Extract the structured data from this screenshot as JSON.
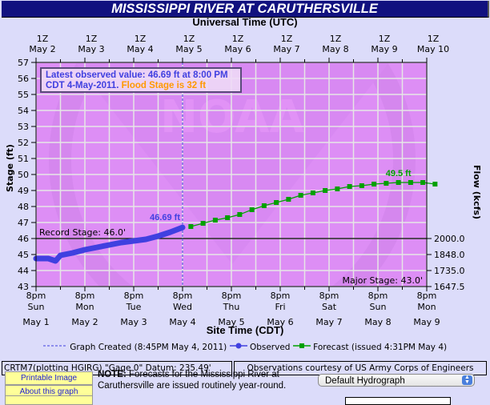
{
  "header": {
    "title": "MISSISSIPPI RIVER AT CARUTHERSVILLE"
  },
  "chart_data": {
    "type": "line",
    "title": "MISSISSIPPI RIVER AT CARUTHERSVILLE",
    "top_axis_title": "Universal Time (UTC)",
    "top_ticks": [
      {
        "line1": "1Z",
        "line2": "May  2"
      },
      {
        "line1": "1Z",
        "line2": "May  3"
      },
      {
        "line1": "1Z",
        "line2": "May  4"
      },
      {
        "line1": "1Z",
        "line2": "May  5"
      },
      {
        "line1": "1Z",
        "line2": "May  6"
      },
      {
        "line1": "1Z",
        "line2": "May  7"
      },
      {
        "line1": "1Z",
        "line2": "May  8"
      },
      {
        "line1": "1Z",
        "line2": "May  9"
      },
      {
        "line1": "1Z",
        "line2": "May 10"
      }
    ],
    "xlabel": "Site Time (CDT)",
    "x_ticks": [
      {
        "time": "8pm",
        "day": "Sun",
        "date": "May 1"
      },
      {
        "time": "8pm",
        "day": "Mon",
        "date": "May 2"
      },
      {
        "time": "8pm",
        "day": "Tue",
        "date": "May 3"
      },
      {
        "time": "8pm",
        "day": "Wed",
        "date": "May 4"
      },
      {
        "time": "8pm",
        "day": "Thu",
        "date": "May 5"
      },
      {
        "time": "8pm",
        "day": "Fri",
        "date": "May 6"
      },
      {
        "time": "8pm",
        "day": "Sat",
        "date": "May 7"
      },
      {
        "time": "8pm",
        "day": "Sun",
        "date": "May 8"
      },
      {
        "time": "8pm",
        "day": "Mon",
        "date": "May 9"
      }
    ],
    "ylabel": "Stage (ft)",
    "ylim": [
      43,
      57
    ],
    "y_ticks": [
      43,
      44,
      45,
      46,
      47,
      48,
      49,
      50,
      51,
      52,
      53,
      54,
      55,
      56,
      57
    ],
    "y2label": "Flow (kcfs)",
    "y2_ticks": [
      {
        "stage": 46,
        "label": "2000.0"
      },
      {
        "stage": 45,
        "label": "1848.0"
      },
      {
        "stage": 44,
        "label": "1735.0"
      },
      {
        "stage": 43,
        "label": "1647.5"
      }
    ],
    "grid": true,
    "series": [
      {
        "name": "Observed",
        "color": "#4040e0",
        "x_days_from_may1_8pm": [
          0,
          0.25,
          0.4,
          0.5,
          0.75,
          1.0,
          1.25,
          1.5,
          1.75,
          2.0,
          2.25,
          2.5,
          2.75,
          3.0
        ],
        "values": [
          44.75,
          44.75,
          44.6,
          44.95,
          45.1,
          45.3,
          45.45,
          45.6,
          45.75,
          45.85,
          45.95,
          46.15,
          46.4,
          46.69
        ]
      },
      {
        "name": "Forecast (issued 4:31PM May 4)",
        "color": "#00a000",
        "x_days_from_may1_8pm": [
          3.17,
          3.42,
          3.67,
          3.92,
          4.17,
          4.42,
          4.67,
          4.92,
          5.17,
          5.42,
          5.67,
          5.92,
          6.17,
          6.42,
          6.67,
          6.92,
          7.17,
          7.42,
          7.67,
          7.92,
          8.17
        ],
        "values": [
          46.75,
          46.95,
          47.15,
          47.3,
          47.5,
          47.8,
          48.05,
          48.25,
          48.45,
          48.7,
          48.85,
          49.0,
          49.1,
          49.25,
          49.3,
          49.4,
          49.45,
          49.5,
          49.5,
          49.5,
          49.4
        ]
      }
    ],
    "annotations": {
      "latest_observed_line1": "Latest observed value:  46.69  ft at 8:00 PM",
      "latest_observed_line2_a": "CDT 4-May-2011. ",
      "latest_observed_line2_b": "Flood Stage is 32  ft",
      "observed_label": "46.69 ft",
      "forecast_peak_label": "49.5 ft",
      "record_stage": "Record Stage: 46.0'",
      "record_stage_value": 46.0,
      "major_stage": "Major Stage: 43.0'",
      "major_stage_value": 43.0
    },
    "legend": {
      "graph_created": "Graph Created (8:45PM May 4, 2011)",
      "observed": "Observed",
      "forecast": "Forecast (issued 4:31PM May 4)"
    },
    "colors": {
      "plot_bg": "#dd8ef5",
      "page_bg": "#dcdcfa",
      "observed": "#4040e0",
      "forecast": "#00a000",
      "flood_stage_text": "#ff9900",
      "title_bar": "#11117f"
    }
  },
  "footer": {
    "datum": "CRTM7(plotting HGIRG) \"Gage 0\" Datum: 235.49'",
    "courtesy": "Observations courtesy of US Army Corps of Engineers",
    "buttons": [
      {
        "label": "Printable Image"
      },
      {
        "label": "About this graph"
      }
    ],
    "note_bold": "NOTE:",
    "note_text": " Forecasts for the Mississippi River at Caruthersville are issued routinely year-round.",
    "select_value": "Default Hydrograph"
  }
}
